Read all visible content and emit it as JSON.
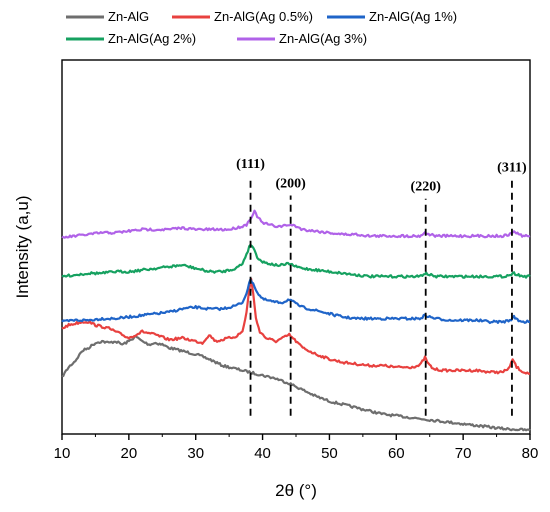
{
  "chart_data": {
    "type": "line",
    "xlabel": "2θ (°)",
    "ylabel": "Intensity (a,u)",
    "xlim": [
      10,
      80
    ],
    "xticks": [
      "10",
      "20",
      "30",
      "40",
      "50",
      "60",
      "70",
      "80"
    ],
    "ylim": [
      0,
      100
    ],
    "grid": false,
    "legend_position": "top",
    "series": [
      {
        "name": "Zn-AlG",
        "color": "#6e6e6e",
        "x": [
          10,
          11,
          12,
          13,
          14,
          15,
          16,
          17,
          18,
          19,
          20,
          21,
          22,
          23,
          24,
          25,
          26,
          28,
          30,
          32,
          34,
          36,
          38,
          40,
          42,
          44,
          46,
          48,
          50,
          52,
          54,
          56,
          58,
          60,
          62,
          64,
          66,
          68,
          70,
          72,
          74,
          76,
          78,
          80
        ],
        "values": [
          17,
          20,
          22,
          25,
          26,
          27.5,
          28,
          27.5,
          28,
          27,
          28,
          29.5,
          28,
          27,
          27.5,
          27,
          26,
          25,
          24,
          22.5,
          20.5,
          19.5,
          18.5,
          17.5,
          16.5,
          15,
          13,
          11,
          9.5,
          8.5,
          7.5,
          6.5,
          5.5,
          5,
          4.5,
          4,
          3.5,
          3,
          2.5,
          2,
          1.5,
          1,
          0.8,
          0.5
        ]
      },
      {
        "name": "Zn-AlG(Ag 0.5%)",
        "color": "#e8413f",
        "x": [
          10,
          11,
          12,
          13,
          14,
          15,
          16,
          17,
          18,
          19,
          20,
          21,
          22,
          24,
          26,
          28,
          30,
          31,
          32,
          33,
          34,
          35,
          36,
          37,
          37.6,
          38.0,
          38.3,
          38.6,
          39.0,
          39.6,
          40.5,
          42,
          43,
          44,
          45,
          46,
          48,
          50,
          52,
          54,
          56,
          58,
          60,
          62,
          63.5,
          64.3,
          64.8,
          65.5,
          67,
          70,
          72,
          74,
          76,
          77,
          77.4,
          78,
          79,
          80
        ],
        "values": [
          32,
          33,
          33.5,
          34,
          34,
          33,
          32.5,
          32,
          31,
          30,
          29,
          30,
          31,
          30,
          28.5,
          29,
          28,
          27.5,
          30,
          28,
          28.5,
          29,
          29.5,
          31,
          37,
          44,
          47,
          43,
          35,
          31,
          29,
          28,
          29,
          30,
          28,
          26,
          24,
          22.5,
          21.5,
          21,
          20.5,
          20.5,
          20,
          20,
          20.5,
          23,
          21,
          19.5,
          19,
          19,
          19,
          18.5,
          18.5,
          20,
          22.5,
          20,
          18.5,
          18
        ]
      },
      {
        "name": "Zn-AlG(Ag 1%)",
        "color": "#1f64c8",
        "x": [
          10,
          12,
          14,
          16,
          18,
          20,
          22,
          24,
          26,
          28,
          30,
          32,
          34,
          35,
          36,
          37,
          37.6,
          38.2,
          38.6,
          39.2,
          40,
          41,
          42,
          43,
          44,
          45,
          46,
          48,
          50,
          52,
          54,
          56,
          58,
          60,
          62,
          63.5,
          64.3,
          65,
          66,
          68,
          70,
          72,
          74,
          76,
          77,
          77.6,
          78.3,
          79,
          80
        ],
        "values": [
          34,
          34.5,
          34.5,
          35,
          35,
          35.5,
          36,
          36.5,
          37,
          38,
          38.5,
          38,
          38,
          38.5,
          39,
          40,
          43,
          47,
          46,
          43,
          41,
          40.5,
          40,
          40,
          41,
          39.5,
          38.5,
          37.5,
          36.5,
          35.5,
          35,
          35,
          35,
          35,
          35,
          35,
          36,
          35.5,
          35,
          34.5,
          34.5,
          34.5,
          34,
          34,
          34.5,
          35.5,
          34.5,
          34,
          34
        ]
      },
      {
        "name": "Zn-AlG(Ag 2%)",
        "color": "#16a160",
        "x": [
          10,
          12,
          14,
          16,
          18,
          20,
          22,
          24,
          26,
          28,
          30,
          32,
          34,
          35,
          36,
          37,
          37.6,
          38.2,
          38.6,
          39.2,
          40,
          41,
          42,
          43,
          44,
          45,
          46,
          48,
          50,
          52,
          54,
          56,
          58,
          60,
          62,
          63.5,
          64.3,
          65,
          66,
          68,
          70,
          72,
          74,
          76,
          77,
          77.6,
          78.3,
          79,
          80
        ],
        "values": [
          48,
          48.5,
          49,
          49,
          49.5,
          49.5,
          50,
          50.5,
          51,
          51.5,
          50.5,
          49.5,
          49.5,
          50,
          50.5,
          52,
          55,
          58,
          57,
          54,
          52.5,
          52,
          51.5,
          51.5,
          52,
          51,
          50.5,
          50,
          49.5,
          49,
          48.5,
          48,
          48,
          48,
          48,
          48,
          49,
          48.5,
          48,
          48,
          48,
          48,
          48,
          48,
          48.5,
          49,
          48.5,
          48,
          48
        ]
      },
      {
        "name": "Zn-AlG(Ag 3%)",
        "color": "#b062e8",
        "x": [
          10,
          12,
          14,
          16,
          18,
          20,
          22,
          24,
          26,
          28,
          30,
          32,
          34,
          35,
          36,
          37,
          37.6,
          38.2,
          38.8,
          39.4,
          40,
          41,
          42,
          43,
          44,
          45,
          46,
          48,
          50,
          52,
          54,
          56,
          58,
          60,
          62,
          63.5,
          64.3,
          65,
          66,
          68,
          70,
          72,
          74,
          76,
          77,
          77.6,
          78.3,
          79,
          80
        ],
        "values": [
          60,
          60.5,
          61,
          61.5,
          61.5,
          62,
          62.5,
          62.5,
          62.5,
          63,
          62.5,
          62.5,
          62.5,
          62.5,
          63,
          63.5,
          64,
          66,
          68,
          66,
          64.5,
          64,
          63.5,
          63.5,
          64,
          63.5,
          62.5,
          62,
          61.5,
          61,
          61,
          60.5,
          60.5,
          60.5,
          60.5,
          60.5,
          61.5,
          61,
          60.5,
          60.5,
          60.5,
          60.5,
          60.5,
          60.5,
          61,
          62,
          61,
          60.5,
          60.5
        ]
      }
    ],
    "annotations": [
      {
        "label": "(111)",
        "x": 38.2,
        "line_from": 5,
        "line_to": 79
      },
      {
        "label": "(200)",
        "x": 44.2,
        "line_from": 5,
        "line_to": 73
      },
      {
        "label": "(220)",
        "x": 64.4,
        "line_from": 5,
        "line_to": 72
      },
      {
        "label": "(311)",
        "x": 77.3,
        "line_from": 5,
        "line_to": 78
      }
    ]
  }
}
